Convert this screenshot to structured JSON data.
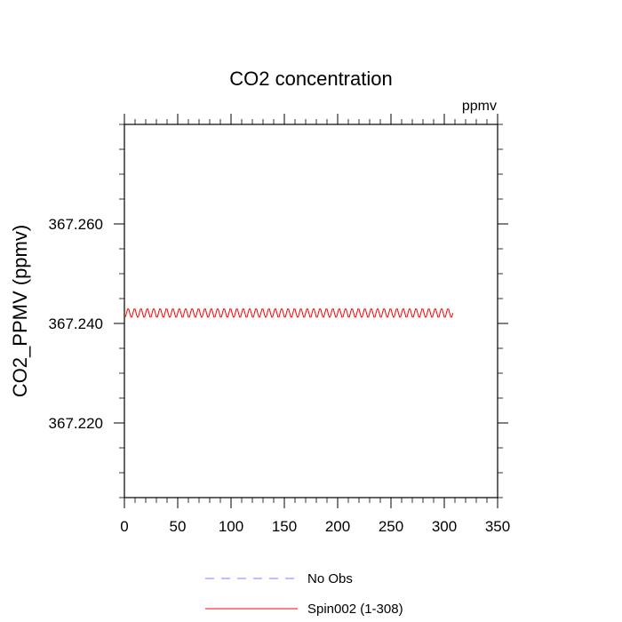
{
  "chart_data": {
    "type": "line",
    "title": "CO2 concentration",
    "units_label": "ppmv",
    "xlabel": "",
    "ylabel": "CO2_PPMV  (ppmv)",
    "xlim": [
      0,
      350
    ],
    "ylim": [
      367.205,
      367.28
    ],
    "x_ticks": [
      0,
      50,
      100,
      150,
      200,
      250,
      300,
      350
    ],
    "x_tick_labels": [
      "0",
      "50",
      "100",
      "150",
      "200",
      "250",
      "300",
      "350"
    ],
    "y_ticks": [
      367.22,
      367.24,
      367.26
    ],
    "y_tick_labels": [
      "367.220",
      "367.240",
      "367.260"
    ],
    "grid": false,
    "legend_position": "bottom-center",
    "series": [
      {
        "name": "No Obs",
        "style": "dashed",
        "color": "#8080ff",
        "x": [],
        "y": []
      },
      {
        "name": "Spin002 (1-308)",
        "style": "solid",
        "color": "#ff0000",
        "x_start": 1,
        "x_end": 308,
        "x_step": 1,
        "y_low": 367.2413,
        "y_high": 367.2429,
        "pattern": "sawtooth: rises for 3 steps then drops over 3 steps (period ~6)"
      }
    ]
  }
}
